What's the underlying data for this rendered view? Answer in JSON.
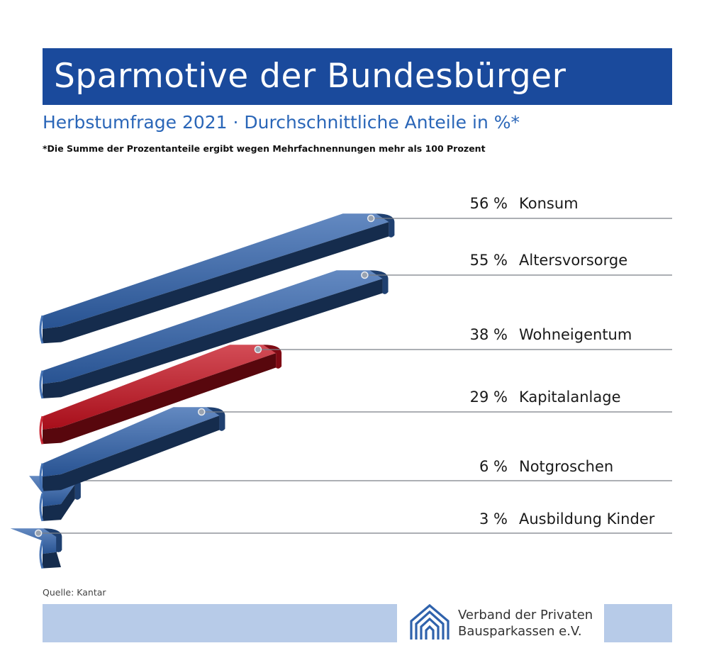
{
  "header": {
    "title": "Sparmotive der Bundesbürger",
    "subtitle": "Herbstumfrage 2021 · Durchschnittliche Anteile in %*",
    "footnote": "*Die Summe der Prozentanteile ergibt wegen Mehrfachnennungen mehr als 100 Prozent"
  },
  "footer": {
    "source": "Quelle: Kantar",
    "org_line1": "Verband der Privaten",
    "org_line2": "Bausparkassen e.V."
  },
  "colors": {
    "title_bg": "#1a4a9c",
    "subtitle": "#2a66b8",
    "bar_blue": "#2f62ac",
    "bar_red": "#c4101e",
    "footer_band": "#b7cbe8"
  },
  "chart_data": {
    "type": "bar",
    "orientation": "horizontal",
    "unit": "%",
    "categories": [
      "Konsum",
      "Altersvorsorge",
      "Wohneigentum",
      "Kapitalanlage",
      "Notgroschen",
      "Ausbildung Kinder"
    ],
    "values": [
      56,
      55,
      38,
      29,
      6,
      3
    ],
    "value_labels": [
      "56 %",
      "55 %",
      "38 %",
      "29 %",
      "6 %",
      "3 %"
    ],
    "highlight": "Wohneigentum",
    "grid": false,
    "legend": "none"
  }
}
